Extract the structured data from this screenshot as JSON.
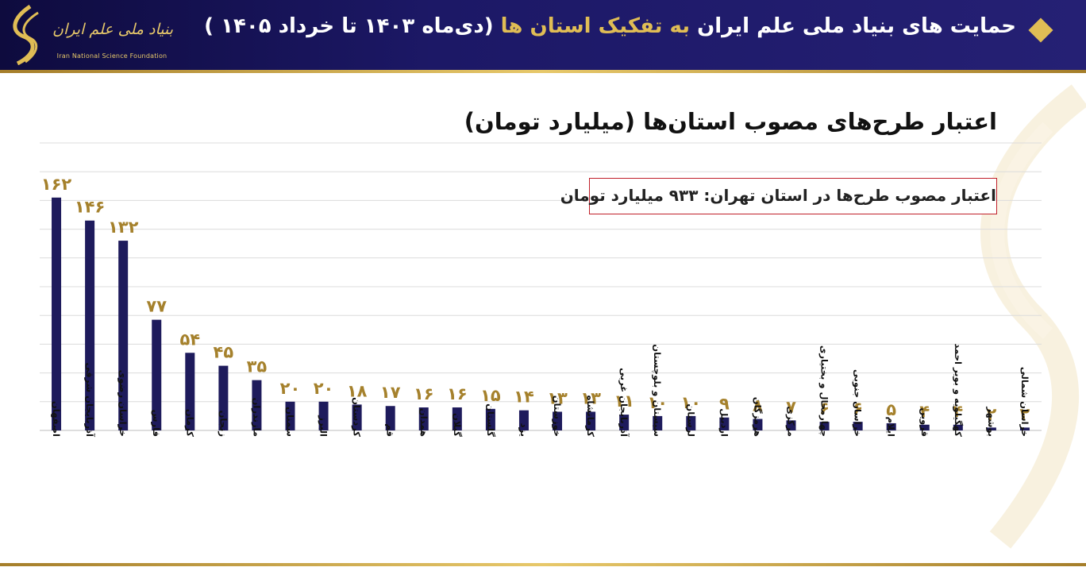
{
  "header": {
    "logo_name": "بنیاد ملی علم ایران",
    "logo_subtitle": "Iran National Science Foundation",
    "logo_icon": "insf-logo-icon",
    "title_part1": "حمایت های بنیاد ملی علم ایران",
    "title_accent": "به تفکیک استان ها",
    "title_part2": "(دی‌ماه ۱۴۰۳ تا خرداد ۱۴۰۵ )",
    "bullet_icon": "diamond-bullet-icon"
  },
  "colors": {
    "header_bg": "#1c1866",
    "accent_gold": "#e0bd55",
    "bar": "#1e1b5c",
    "value_label": "#a5812c",
    "box_border": "#c0202a"
  },
  "tehran_note": "اعتبار مصوب طرح‌ها در استان تهران: ۹۳۳ میلیارد تومان",
  "chart_data": {
    "type": "bar",
    "title": "اعتبار طرح‌های مصوب استان‌ها (میلیارد تومان)",
    "grid": true,
    "ylim": [
      0,
      200
    ],
    "categories": [
      "اصفهان",
      "آذربایجان شرقی",
      "خراسان رضوی",
      "فارس",
      "کرمان",
      "زنجان",
      "مازندران",
      "سمنان",
      "البرز",
      "کردستان",
      "قم",
      "همدان",
      "گیلان",
      "گلستان",
      "یزد",
      "خوزستان",
      "کرمانشاه",
      "آذربایجان غربی",
      "سیستان و بلوچستان",
      "لرستان",
      "اردبیل",
      "هرمزگان",
      "مرکزی",
      "چهارمحال و بختیاری",
      "خراسان جنوبی",
      "ایلام",
      "قزوین",
      "کهگیلویه و بویر احمد",
      "بوشهر",
      "خراسان شمالی"
    ],
    "values": [
      162,
      146,
      132,
      77,
      54,
      45,
      35,
      20,
      20,
      18,
      17,
      16,
      16,
      15,
      14,
      13,
      13,
      11,
      10,
      10,
      9,
      8,
      7,
      6,
      6,
      5,
      4,
      4,
      2,
      2
    ],
    "value_labels": [
      "۱۶۲",
      "۱۴۶",
      "۱۳۲",
      "۷۷",
      "۵۴",
      "۴۵",
      "۳۵",
      "۲۰",
      "۲۰",
      "۱۸",
      "۱۷",
      "۱۶",
      "۱۶",
      "۱۵",
      "۱۴",
      "۱۳",
      "۱۳",
      "۱۱",
      "۱۰",
      "۱۰",
      "۹",
      "۸",
      "۷",
      "۶",
      "۶",
      "۵",
      "۴",
      "۴",
      "۲",
      "۲"
    ]
  }
}
